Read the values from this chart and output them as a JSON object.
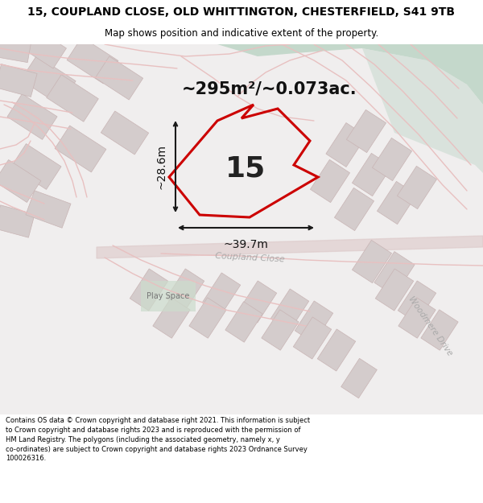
{
  "title_line1": "15, COUPLAND CLOSE, OLD WHITTINGTON, CHESTERFIELD, S41 9TB",
  "title_line2": "Map shows position and indicative extent of the property.",
  "footer": "Contains OS data © Crown copyright and database right 2021. This information is subject to Crown copyright and database rights 2023 and is reproduced with the permission of HM Land Registry. The polygons (including the associated geometry, namely x, y co-ordinates) are subject to Crown copyright and database rights 2023 Ordnance Survey 100026316.",
  "area_label": "~295m²/~0.073ac.",
  "width_label": "~39.7m",
  "height_label": "~28.6m",
  "plot_number": "15",
  "map_bg": "#f0eeee",
  "green_color": "#c4d8cb",
  "road_color": "#e8c0c0",
  "block_color": "#d4cccc",
  "block_edge": "#c8b4b4",
  "red_color": "#cc0000",
  "play_space_color": "#ccdccc",
  "arrow_color": "#1a1a1a",
  "road_label1": "Coupland Close",
  "road_label2": "Woodmere Drive",
  "play_space_label": "Play Space",
  "title_fontsize": 10,
  "subtitle_fontsize": 8.5,
  "footer_fontsize": 6.0
}
